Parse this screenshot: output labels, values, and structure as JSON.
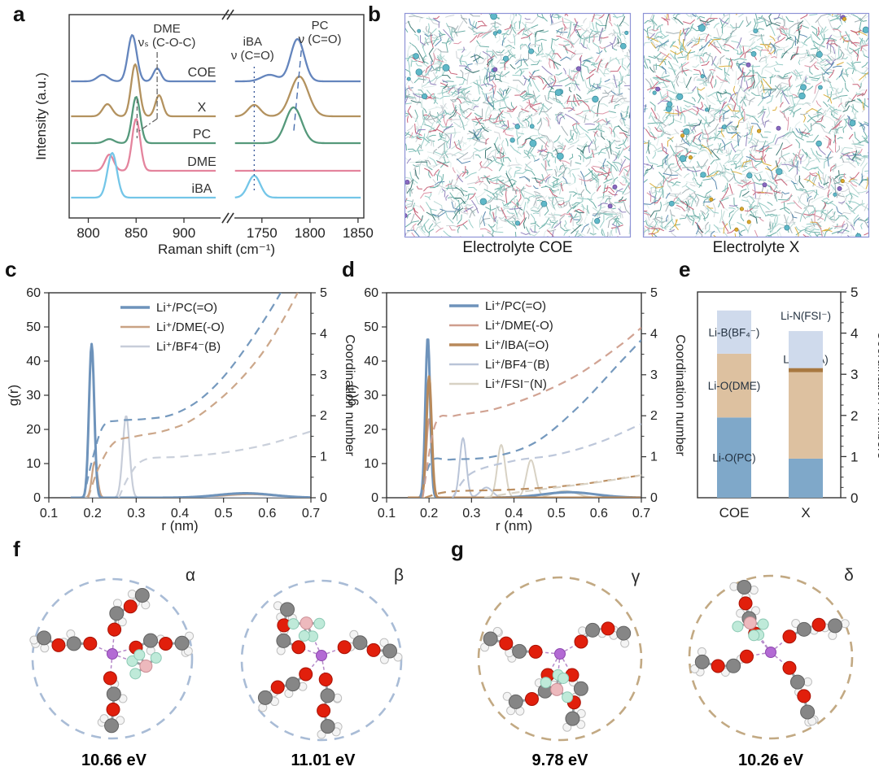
{
  "figure": {
    "panels": {
      "a": {
        "label": "a"
      },
      "b": {
        "label": "b",
        "captions": [
          "Electrolyte COE",
          "Electrolyte X"
        ],
        "box_border_color": "#8d93d6"
      },
      "c": {
        "label": "c"
      },
      "d": {
        "label": "d"
      },
      "e": {
        "label": "e"
      },
      "f": {
        "label": "f",
        "circle_color": "#a9bcd6",
        "clusters": [
          {
            "greek": "α",
            "energy": "10.66 eV"
          },
          {
            "greek": "β",
            "energy": "11.01 eV"
          }
        ]
      },
      "g": {
        "label": "g",
        "circle_color": "#c2a983",
        "clusters": [
          {
            "greek": "γ",
            "energy": "9.78 eV"
          },
          {
            "greek": "δ",
            "energy": "10.26 eV"
          }
        ]
      }
    },
    "atom_legend": [
      "C-grey",
      "H-white",
      "O-red",
      "Li-purple",
      "B-pink",
      "F-mint"
    ]
  },
  "chart_data": [
    {
      "id": "a",
      "type": "line",
      "xlabel": "Raman shift (cm⁻¹)",
      "ylabel": "Intensity (a.u.)",
      "axis_break": [
        940,
        1718
      ],
      "xticks": [
        800,
        850,
        900,
        1750,
        1800,
        1850
      ],
      "curves": [
        {
          "name": "COE",
          "color": "#6485bd",
          "peaks": [
            [
              815,
              8,
              8
            ],
            [
              846,
              57,
              6.5
            ],
            [
              872,
              16,
              5.5
            ],
            [
              1758,
              8,
              12
            ],
            [
              1787,
              52,
              10
            ]
          ]
        },
        {
          "name": "X",
          "color": "#b3925f",
          "peaks": [
            [
              820,
              15,
              7
            ],
            [
              849,
              64,
              6
            ],
            [
              874,
              26,
              5.5
            ],
            [
              1742,
              14,
              9
            ],
            [
              1789,
              49,
              13
            ]
          ]
        },
        {
          "name": "PC",
          "color": "#55997b",
          "peaks": [
            [
              822,
              5,
              7
            ],
            [
              850,
              57,
              6
            ],
            [
              1783,
              44,
              12
            ]
          ]
        },
        {
          "name": "DME",
          "color": "#e4849d",
          "peaks": [
            [
              822,
              20,
              6.5
            ],
            [
              850,
              64,
              6
            ]
          ]
        },
        {
          "name": "iBA",
          "color": "#74c6e8",
          "peaks": [
            [
              825,
              55,
              7
            ],
            [
              1742,
              27,
              9
            ]
          ]
        }
      ],
      "annotations": [
        {
          "lines": [
            "DME",
            "νₛ (C-O-C)"
          ],
          "x": 872,
          "style": "dashdot"
        },
        {
          "lines": [
            "iBA",
            "ν (C=O)"
          ],
          "x": 1742,
          "style": "dotted"
        },
        {
          "lines": [
            "PC",
            "ν (C=O)"
          ],
          "x": 1790,
          "style": "dashed"
        }
      ]
    },
    {
      "id": "c",
      "type": "line",
      "xlabel": "r (nm)",
      "ylabel_left": "g(r)",
      "ylabel_right": "Coordination number",
      "xlim": [
        0.1,
        0.7
      ],
      "ylim_left": [
        0,
        60
      ],
      "ylim_right": [
        0,
        5
      ],
      "xticks": [
        0.1,
        0.2,
        0.3,
        0.4,
        0.5,
        0.6,
        0.7
      ],
      "yticks_left": [
        0,
        10,
        20,
        30,
        40,
        50,
        60
      ],
      "yticks_right": [
        0,
        1,
        2,
        3,
        4,
        5
      ],
      "series": [
        {
          "name": "Li⁺/PC(=O)",
          "color": "#6e93bb",
          "lw": 3,
          "gr_peaks": [
            [
              0.198,
              45,
              0.0085
            ],
            [
              0.55,
              1.3,
              0.09
            ]
          ],
          "cn": [
            [
              0.18,
              0
            ],
            [
              0.2,
              0.95
            ],
            [
              0.225,
              1.75
            ],
            [
              0.26,
              1.88
            ],
            [
              0.32,
              1.92
            ],
            [
              0.38,
              2.02
            ],
            [
              0.44,
              2.35
            ],
            [
              0.5,
              2.95
            ],
            [
              0.56,
              3.8
            ],
            [
              0.62,
              4.8
            ],
            [
              0.66,
              5.6
            ]
          ]
        },
        {
          "name": "Li⁺/DME(-O)",
          "color": "#c9a284",
          "lw": 2.2,
          "gr_peaks": [
            [
              0.205,
              10.5,
              0.009
            ],
            [
              0.56,
              1.0,
              0.09
            ]
          ],
          "cn": [
            [
              0.19,
              0
            ],
            [
              0.215,
              0.75
            ],
            [
              0.25,
              1.35
            ],
            [
              0.3,
              1.5
            ],
            [
              0.36,
              1.62
            ],
            [
              0.42,
              1.85
            ],
            [
              0.48,
              2.3
            ],
            [
              0.54,
              2.9
            ],
            [
              0.6,
              3.7
            ],
            [
              0.66,
              4.8
            ],
            [
              0.69,
              5.5
            ]
          ]
        },
        {
          "name": "Li⁺/BF4⁻(B)",
          "color": "#c7cdd9",
          "lw": 2.2,
          "gr_peaks": [
            [
              0.277,
              24,
              0.011
            ]
          ],
          "cn": [
            [
              0.26,
              0
            ],
            [
              0.285,
              0.55
            ],
            [
              0.32,
              0.93
            ],
            [
              0.4,
              1.0
            ],
            [
              0.5,
              1.1
            ],
            [
              0.6,
              1.3
            ],
            [
              0.7,
              1.62
            ]
          ]
        }
      ]
    },
    {
      "id": "d",
      "type": "line",
      "xlabel": "r (nm)",
      "ylabel_left": "g(r)",
      "ylabel_right": "Coordination number",
      "xlim": [
        0.1,
        0.7
      ],
      "ylim_left": [
        0,
        60
      ],
      "ylim_right": [
        0,
        5
      ],
      "xticks": [
        0.1,
        0.2,
        0.3,
        0.4,
        0.5,
        0.6,
        0.7
      ],
      "yticks_left": [
        0,
        10,
        20,
        30,
        40,
        50,
        60
      ],
      "yticks_right": [
        0,
        1,
        2,
        3,
        4,
        5
      ],
      "series": [
        {
          "name": "Li⁺/PC(=O)",
          "color": "#6e93bb",
          "lw": 3,
          "gr_peaks": [
            [
              0.197,
              47,
              0.008
            ],
            [
              0.53,
              1.6,
              0.09
            ]
          ],
          "cn": [
            [
              0.18,
              0
            ],
            [
              0.205,
              0.88
            ],
            [
              0.25,
              0.93
            ],
            [
              0.35,
              1.0
            ],
            [
              0.45,
              1.35
            ],
            [
              0.55,
              2.2
            ],
            [
              0.65,
              3.3
            ],
            [
              0.7,
              3.85
            ]
          ]
        },
        {
          "name": "Li⁺/DME(-O)",
          "color": "#cf9e8d",
          "lw": 2.2,
          "gr_peaks": [
            [
              0.2,
              23,
              0.009
            ]
          ],
          "cn": [
            [
              0.185,
              0
            ],
            [
              0.215,
              1.8
            ],
            [
              0.26,
              2.0
            ],
            [
              0.35,
              2.15
            ],
            [
              0.45,
              2.5
            ],
            [
              0.55,
              3.0
            ],
            [
              0.65,
              3.72
            ],
            [
              0.7,
              4.15
            ]
          ]
        },
        {
          "name": "Li⁺/IBA(=O)",
          "color": "#b8895a",
          "lw": 3,
          "gr_peaks": [
            [
              0.2,
              35.5,
              0.0085
            ]
          ],
          "cn": [
            [
              0.19,
              0
            ],
            [
              0.25,
              0.15
            ],
            [
              0.4,
              0.2
            ],
            [
              0.55,
              0.32
            ],
            [
              0.7,
              0.55
            ]
          ]
        },
        {
          "name": "Li⁺/BF4⁻(B)",
          "color": "#b9c4d8",
          "lw": 2,
          "gr_peaks": [
            [
              0.28,
              17.5,
              0.011
            ],
            [
              0.335,
              3,
              0.02
            ]
          ],
          "cn": [
            [
              0.255,
              0
            ],
            [
              0.3,
              0.6
            ],
            [
              0.4,
              0.9
            ],
            [
              0.5,
              1.05
            ],
            [
              0.6,
              1.35
            ],
            [
              0.7,
              1.8
            ]
          ]
        },
        {
          "name": "Li⁺/FSI⁻(N)",
          "color": "#d8d2c4",
          "lw": 2,
          "gr_peaks": [
            [
              0.37,
              15.5,
              0.013
            ],
            [
              0.44,
              11,
              0.015
            ],
            [
              0.52,
              2,
              0.04
            ]
          ],
          "cn": [
            [
              0.33,
              0
            ],
            [
              0.4,
              0.12
            ],
            [
              0.5,
              0.25
            ],
            [
              0.6,
              0.38
            ],
            [
              0.7,
              0.55
            ]
          ]
        }
      ]
    },
    {
      "id": "e",
      "type": "stacked_bar",
      "ylabel": "Coordination numbers",
      "ylim": [
        0,
        5
      ],
      "categories": [
        "COE",
        "X"
      ],
      "bars": [
        {
          "category": "COE",
          "segments": [
            {
              "label": "Li-O(PC)",
              "value": 1.95,
              "color": "#7fa8c9",
              "label_pos": "in"
            },
            {
              "label": "Li-O(DME)",
              "value": 1.55,
              "color": "#ddc1a0",
              "label_pos": "in"
            },
            {
              "label": "Li-B(BF₄⁻)",
              "value": 1.05,
              "color": "#cfdaec",
              "label_pos": "in"
            }
          ]
        },
        {
          "category": "X",
          "segments": [
            {
              "label": "Li-O(PC)",
              "value": 0.95,
              "color": "#7fa8c9",
              "label_pos": "none"
            },
            {
              "label": "Li-O(DME)",
              "value": 2.1,
              "color": "#ddc1a0",
              "label_pos": "none"
            },
            {
              "label": "Li-O(iBA)",
              "value": 0.1,
              "color": "#a87840",
              "label_pos": "at"
            },
            {
              "label": "Li-N(FSI⁻)",
              "value": 0.9,
              "color": "#cfdaec",
              "label_pos": "above"
            }
          ]
        }
      ]
    }
  ]
}
